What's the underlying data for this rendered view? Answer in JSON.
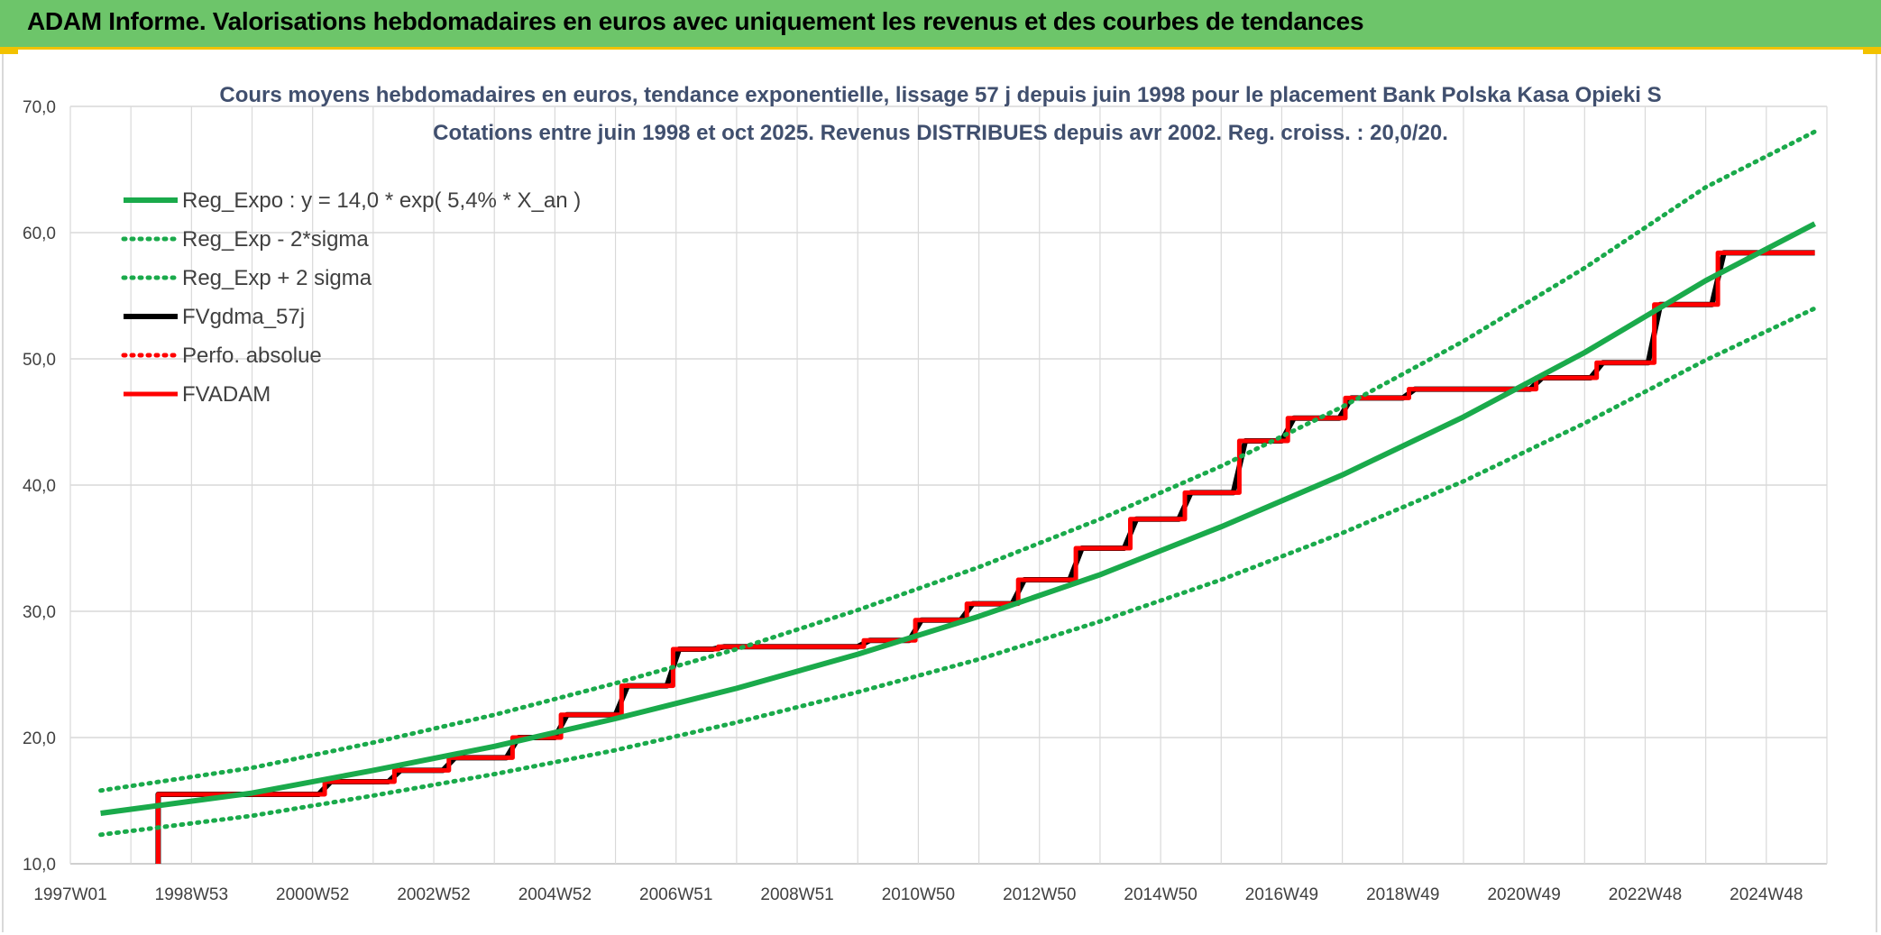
{
  "header": {
    "title": "ADAM Informe. Valorisations hebdomadaires en euros avec uniquement les revenus et des courbes de tendances"
  },
  "colors": {
    "header_bg": "#6dc56a",
    "accent": "#f2c200",
    "reg": "#1aaa4b",
    "fv57": "#000000",
    "fvadam": "#ff0000"
  },
  "chart_data": {
    "type": "line",
    "title": "Cours moyens hebdomadaires en euros, tendance exponentielle, lissage 57 j depuis juin 1998 pour le placement Bank Polska Kasa Opieki S",
    "subtitle": "Cotations entre juin 1998 et oct 2025. Revenus DISTRIBUES depuis avr 2002. Reg. croiss. : 20,0/20.",
    "xlabel": "",
    "ylabel": "",
    "x_tick_labels": [
      "1997W01",
      "1998W53",
      "2000W52",
      "2002W52",
      "2004W52",
      "2006W51",
      "2008W51",
      "2010W50",
      "2012W50",
      "2014W50",
      "2016W49",
      "2018W49",
      "2020W49",
      "2022W48",
      "2024W48"
    ],
    "x_range": [
      1997.0,
      2026.0
    ],
    "y_tick_labels": [
      "10,0",
      "20,0",
      "30,0",
      "40,0",
      "50,0",
      "60,0",
      "70,0"
    ],
    "ylim": [
      10,
      70
    ],
    "grid": true,
    "legend_position": "top-left",
    "series": [
      {
        "name": "Reg_Expo : y = 14,0 * exp( 5,4% *  X_an )",
        "style": "solid",
        "color": "#1aaa4b",
        "x": [
          1997.5,
          2000.0,
          2002.0,
          2004.0,
          2006.0,
          2008.0,
          2010.0,
          2012.0,
          2014.0,
          2016.0,
          2018.0,
          2020.0,
          2022.0,
          2024.0,
          2025.8
        ],
        "y": [
          14.0,
          15.6,
          17.4,
          19.3,
          21.5,
          23.9,
          26.6,
          29.6,
          32.9,
          36.7,
          40.8,
          45.4,
          50.5,
          56.2,
          60.7
        ]
      },
      {
        "name": "Reg_Exp - 2*sigma",
        "style": "dotted",
        "color": "#1aaa4b",
        "x": [
          1997.5,
          2000.0,
          2002.0,
          2004.0,
          2006.0,
          2008.0,
          2010.0,
          2012.0,
          2014.0,
          2016.0,
          2018.0,
          2020.0,
          2022.0,
          2024.0,
          2025.8
        ],
        "y": [
          12.3,
          13.8,
          15.4,
          17.1,
          19.0,
          21.2,
          23.6,
          26.2,
          29.2,
          32.5,
          36.2,
          40.3,
          44.9,
          49.9,
          54.0
        ]
      },
      {
        "name": "Reg_Exp + 2 sigma",
        "style": "dotted",
        "color": "#1aaa4b",
        "x": [
          1997.5,
          2000.0,
          2002.0,
          2004.0,
          2006.0,
          2008.0,
          2010.0,
          2012.0,
          2014.0,
          2016.0,
          2018.0,
          2020.0,
          2022.0,
          2024.0,
          2025.8
        ],
        "y": [
          15.8,
          17.6,
          19.6,
          21.8,
          24.3,
          27.0,
          30.1,
          33.5,
          37.3,
          41.5,
          46.2,
          51.4,
          57.2,
          63.6,
          68.0
        ]
      },
      {
        "name": "FVgdma_57j",
        "style": "solid",
        "color": "#000000",
        "x": [
          1998.45,
          1998.45,
          2001.1,
          2001.3,
          2002.25,
          2002.45,
          2003.15,
          2003.35,
          2004.2,
          2004.4,
          2005.0,
          2005.2,
          2006.0,
          2006.2,
          2006.85,
          2007.05,
          2007.6,
          2007.8,
          2010.0,
          2010.2,
          2010.85,
          2011.05,
          2011.7,
          2011.9,
          2012.55,
          2012.75,
          2013.5,
          2013.7,
          2014.4,
          2014.6,
          2015.3,
          2015.5,
          2016.2,
          2016.4,
          2017.0,
          2017.2,
          2017.95,
          2018.15,
          2019.0,
          2019.2,
          2021.1,
          2021.3,
          2022.1,
          2022.3,
          2023.05,
          2023.25,
          2024.1,
          2024.3,
          2024.95,
          2025.15,
          2025.8
        ],
        "y": [
          10.0,
          15.5,
          15.5,
          16.5,
          16.5,
          17.4,
          17.4,
          18.4,
          18.4,
          20.0,
          20.0,
          21.8,
          21.8,
          24.1,
          24.1,
          27.0,
          27.0,
          27.2,
          27.2,
          27.7,
          27.7,
          29.3,
          29.3,
          30.6,
          30.6,
          32.5,
          32.5,
          35.0,
          35.0,
          37.3,
          37.3,
          39.4,
          39.4,
          43.5,
          43.5,
          45.3,
          45.3,
          46.9,
          46.9,
          47.6,
          47.6,
          48.5,
          48.5,
          49.7,
          49.7,
          54.3,
          54.3,
          58.4,
          58.4,
          58.4,
          58.4
        ]
      },
      {
        "name": "Perfo. absolue",
        "style": "dotted",
        "color": "#ff0000",
        "x": [],
        "y": []
      },
      {
        "name": "FVADAM",
        "style": "solid",
        "color": "#ff0000",
        "x": [
          1998.45,
          1998.45,
          2001.2,
          2001.2,
          2002.35,
          2002.35,
          2003.25,
          2003.25,
          2004.3,
          2004.3,
          2005.1,
          2005.1,
          2006.1,
          2006.1,
          2006.95,
          2006.95,
          2007.7,
          2007.7,
          2010.1,
          2010.1,
          2010.95,
          2010.95,
          2011.8,
          2011.8,
          2012.65,
          2012.65,
          2013.6,
          2013.6,
          2014.5,
          2014.5,
          2015.4,
          2015.4,
          2016.3,
          2016.3,
          2017.1,
          2017.1,
          2018.05,
          2018.05,
          2019.1,
          2019.1,
          2021.2,
          2021.2,
          2022.2,
          2022.2,
          2023.15,
          2023.15,
          2024.2,
          2024.2,
          2025.05,
          2025.05,
          2025.8
        ],
        "y": [
          10.0,
          15.5,
          15.5,
          16.5,
          16.5,
          17.4,
          17.4,
          18.4,
          18.4,
          20.0,
          20.0,
          21.8,
          21.8,
          24.1,
          24.1,
          27.0,
          27.0,
          27.2,
          27.2,
          27.7,
          27.7,
          29.3,
          29.3,
          30.6,
          30.6,
          32.5,
          32.5,
          35.0,
          35.0,
          37.3,
          37.3,
          39.4,
          39.4,
          43.5,
          43.5,
          45.3,
          45.3,
          46.9,
          46.9,
          47.6,
          47.6,
          48.5,
          48.5,
          49.7,
          49.7,
          54.3,
          54.3,
          58.4,
          58.4,
          58.4,
          58.4
        ]
      }
    ]
  }
}
